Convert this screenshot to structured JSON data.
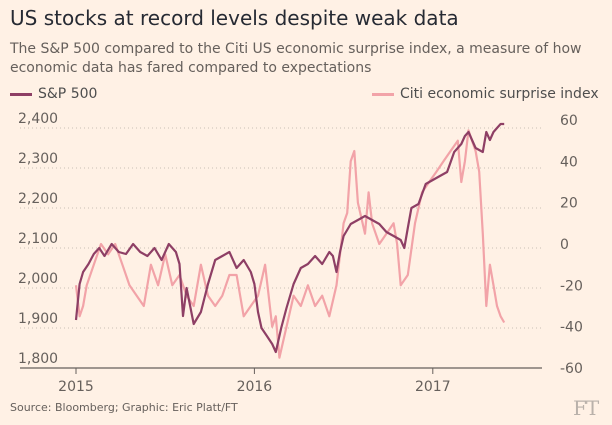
{
  "chart_data": {
    "type": "line",
    "title": "US stocks at record levels despite weak data",
    "subtitle": "The S&P 500 compared to the Citi US economic surprise index, a measure of how economic data has fared compared to expectations",
    "x_ticks": [
      "2015",
      "2016",
      "2017"
    ],
    "x_range": [
      2015.0,
      2017.5
    ],
    "left_axis": {
      "ticks": [
        "1,800",
        "1,900",
        "2,000",
        "2,100",
        "2,200",
        "2,300",
        "2,400"
      ],
      "range": [
        1800,
        2420
      ]
    },
    "right_axis": {
      "ticks": [
        "-60",
        "-40",
        "-20",
        "0",
        "20",
        "40",
        "60"
      ],
      "range": [
        -60,
        60
      ]
    },
    "grid": "horizontal dotted",
    "series": [
      {
        "name": "S&P 500",
        "axis": "left",
        "color": "#8e3f65",
        "x": [
          2015.0,
          2015.02,
          2015.04,
          2015.07,
          2015.1,
          2015.13,
          2015.16,
          2015.2,
          2015.24,
          2015.28,
          2015.32,
          2015.36,
          2015.4,
          2015.44,
          2015.48,
          2015.52,
          2015.56,
          2015.58,
          2015.6,
          2015.62,
          2015.66,
          2015.7,
          2015.74,
          2015.78,
          2015.82,
          2015.86,
          2015.9,
          2015.94,
          2015.98,
          2016.0,
          2016.02,
          2016.04,
          2016.07,
          2016.1,
          2016.12,
          2016.15,
          2016.18,
          2016.22,
          2016.26,
          2016.3,
          2016.34,
          2016.38,
          2016.42,
          2016.44,
          2016.46,
          2016.48,
          2016.5,
          2016.54,
          2016.58,
          2016.62,
          2016.66,
          2016.7,
          2016.74,
          2016.78,
          2016.82,
          2016.84,
          2016.86,
          2016.88,
          2016.92,
          2016.96,
          2017.0,
          2017.04,
          2017.08,
          2017.12,
          2017.16,
          2017.18,
          2017.2,
          2017.24,
          2017.28,
          2017.3,
          2017.32,
          2017.34,
          2017.36,
          2017.38,
          2017.4
        ],
        "values": [
          1920,
          2010,
          2040,
          2060,
          2085,
          2100,
          2080,
          2110,
          2090,
          2085,
          2110,
          2090,
          2080,
          2100,
          2070,
          2110,
          2090,
          2060,
          1930,
          2000,
          1910,
          1940,
          2010,
          2070,
          2080,
          2090,
          2050,
          2070,
          2040,
          2010,
          1940,
          1900,
          1880,
          1860,
          1840,
          1900,
          1950,
          2010,
          2050,
          2060,
          2080,
          2060,
          2090,
          2080,
          2040,
          2090,
          2130,
          2160,
          2170,
          2180,
          2170,
          2160,
          2140,
          2130,
          2120,
          2100,
          2150,
          2200,
          2210,
          2260,
          2270,
          2280,
          2290,
          2340,
          2360,
          2380,
          2390,
          2350,
          2340,
          2390,
          2370,
          2390,
          2400,
          2410,
          2410
        ]
      },
      {
        "name": "Citi economic surprise index",
        "axis": "right",
        "color": "#f2a3a8",
        "x": [
          2015.0,
          2015.02,
          2015.04,
          2015.06,
          2015.1,
          2015.14,
          2015.18,
          2015.22,
          2015.26,
          2015.3,
          2015.34,
          2015.38,
          2015.42,
          2015.46,
          2015.5,
          2015.54,
          2015.58,
          2015.62,
          2015.66,
          2015.7,
          2015.74,
          2015.78,
          2015.82,
          2015.86,
          2015.9,
          2015.94,
          2015.98,
          2016.02,
          2016.06,
          2016.1,
          2016.12,
          2016.14,
          2016.18,
          2016.22,
          2016.26,
          2016.3,
          2016.34,
          2016.38,
          2016.42,
          2016.46,
          2016.5,
          2016.52,
          2016.54,
          2016.56,
          2016.58,
          2016.62,
          2016.64,
          2016.66,
          2016.7,
          2016.74,
          2016.78,
          2016.8,
          2016.82,
          2016.86,
          2016.9,
          2016.94,
          2016.98,
          2017.02,
          2017.06,
          2017.1,
          2017.14,
          2017.16,
          2017.18,
          2017.2,
          2017.22,
          2017.24,
          2017.26,
          2017.28,
          2017.3,
          2017.32,
          2017.34,
          2017.36,
          2017.38,
          2017.4
        ],
        "values": [
          -20,
          -35,
          -30,
          -20,
          -10,
          0,
          -5,
          0,
          -10,
          -20,
          -25,
          -30,
          -10,
          -20,
          -5,
          -20,
          -15,
          -25,
          -30,
          -10,
          -25,
          -30,
          -25,
          -15,
          -15,
          -35,
          -30,
          -25,
          -10,
          -40,
          -35,
          -55,
          -40,
          -25,
          -30,
          -20,
          -30,
          -25,
          -35,
          -20,
          10,
          15,
          40,
          45,
          20,
          5,
          25,
          10,
          0,
          5,
          10,
          0,
          -20,
          -15,
          10,
          25,
          30,
          35,
          40,
          45,
          50,
          30,
          40,
          55,
          50,
          45,
          35,
          5,
          -30,
          -10,
          -20,
          -30,
          -35,
          -38
        ]
      }
    ]
  },
  "source": "Source: Bloomberg; Graphic: Eric Platt/FT",
  "logo": "FT"
}
